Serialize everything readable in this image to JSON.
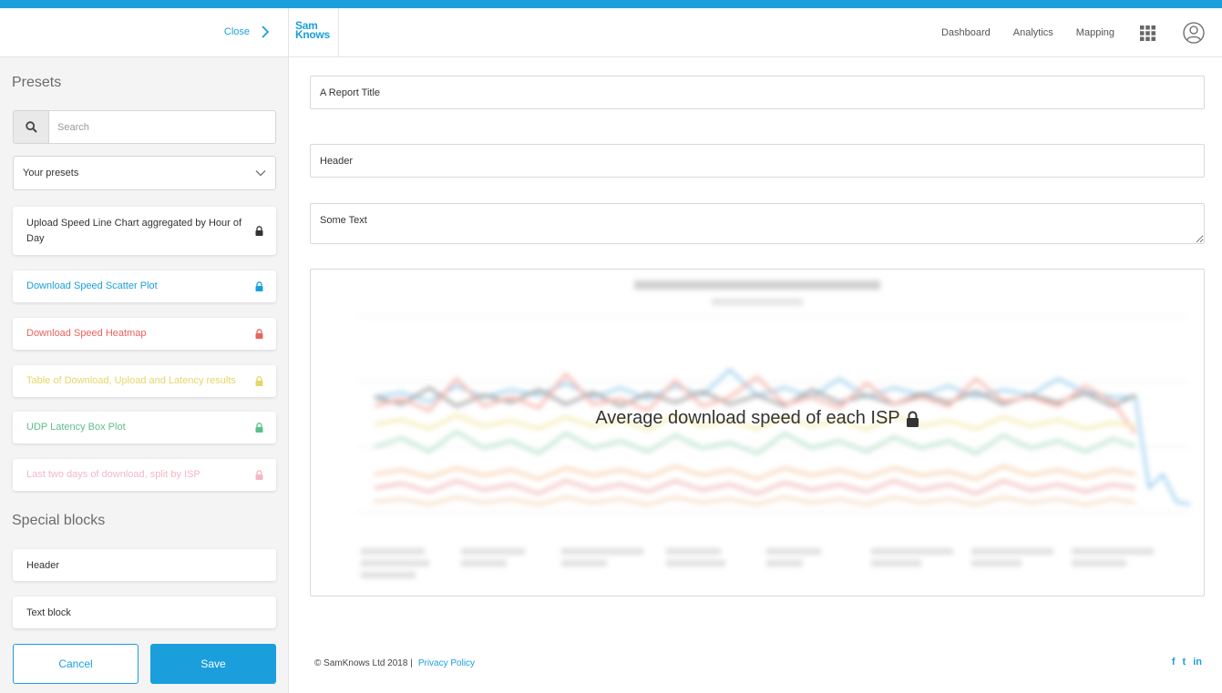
{
  "sidebar": {
    "close_label": "Close",
    "presets_title": "Presets",
    "search_placeholder": "Search",
    "presets_select": "Your presets",
    "presets": [
      {
        "label": "Upload Speed Line Chart aggregated by Hour of Day",
        "color": "#333333"
      },
      {
        "label": "Download Speed Scatter Plot",
        "color": "#1a9fdc"
      },
      {
        "label": "Download Speed Heatmap",
        "color": "#e8645a"
      },
      {
        "label": "Table of Download, Upload and Latency results",
        "color": "#e6d66a"
      },
      {
        "label": "UDP Latency Box Plot",
        "color": "#5bbf8a"
      },
      {
        "label": "Last two days of download, split by ISP",
        "color": "#f2b8c6"
      }
    ],
    "special_title": "Special blocks",
    "special_blocks": [
      "Header",
      "Text block"
    ],
    "cancel_label": "Cancel",
    "save_label": "Save"
  },
  "header": {
    "logo_line1": "Sam",
    "logo_line2": "Knows",
    "nav": [
      "Dashboard",
      "Analytics",
      "Mapping"
    ]
  },
  "main": {
    "report_title": "A Report Title",
    "header_field": "Header",
    "text_field": "Some Text",
    "chart_overlay_title": "Average download speed of each ISP"
  },
  "footer": {
    "copyright": "© SamKnows Ltd 2018 |",
    "privacy": "Privacy Policy",
    "social": [
      "f",
      "t",
      "in"
    ]
  },
  "colors": {
    "accent": "#1a9fdc"
  }
}
